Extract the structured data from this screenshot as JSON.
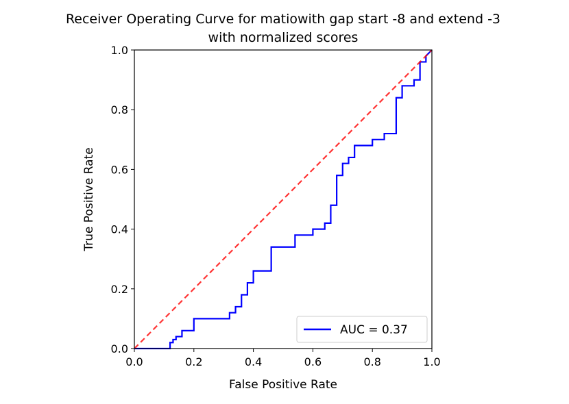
{
  "chart_data": {
    "type": "line",
    "title": "Receiver Operating Curve for matiowith gap start -8 and extend -3\nwith normalized scores",
    "xlabel": "False Positive Rate",
    "ylabel": "True Positive Rate",
    "xlim": [
      0.0,
      1.0
    ],
    "ylim": [
      0.0,
      1.0
    ],
    "xticks": [
      "0.0",
      "0.2",
      "0.4",
      "0.6",
      "0.8",
      "1.0"
    ],
    "yticks": [
      "0.0",
      "0.2",
      "0.4",
      "0.6",
      "0.8",
      "1.0"
    ],
    "grid": false,
    "legend_position": "lower right",
    "series": [
      {
        "name": "AUC = 0.37",
        "color": "#0000ff",
        "style": "solid",
        "x": [
          0.0,
          0.12,
          0.12,
          0.13,
          0.13,
          0.14,
          0.14,
          0.16,
          0.16,
          0.2,
          0.2,
          0.32,
          0.32,
          0.34,
          0.34,
          0.36,
          0.36,
          0.38,
          0.38,
          0.4,
          0.4,
          0.46,
          0.46,
          0.54,
          0.54,
          0.6,
          0.6,
          0.64,
          0.64,
          0.66,
          0.66,
          0.68,
          0.68,
          0.7,
          0.7,
          0.72,
          0.72,
          0.74,
          0.74,
          0.8,
          0.8,
          0.84,
          0.84,
          0.88,
          0.88,
          0.9,
          0.9,
          0.94,
          0.94,
          0.96,
          0.96,
          0.98,
          0.98,
          1.0
        ],
        "y": [
          0.0,
          0.0,
          0.02,
          0.02,
          0.03,
          0.03,
          0.04,
          0.04,
          0.06,
          0.06,
          0.1,
          0.1,
          0.12,
          0.12,
          0.14,
          0.14,
          0.18,
          0.18,
          0.22,
          0.22,
          0.26,
          0.26,
          0.34,
          0.34,
          0.38,
          0.38,
          0.4,
          0.4,
          0.42,
          0.42,
          0.48,
          0.48,
          0.58,
          0.58,
          0.62,
          0.62,
          0.64,
          0.64,
          0.68,
          0.68,
          0.7,
          0.7,
          0.72,
          0.72,
          0.84,
          0.84,
          0.88,
          0.88,
          0.9,
          0.9,
          0.96,
          0.96,
          0.98,
          1.0
        ]
      },
      {
        "name": "",
        "color": "#ff0000",
        "style": "dashed",
        "x": [
          0.0,
          1.0
        ],
        "y": [
          0.0,
          1.0
        ]
      }
    ]
  }
}
